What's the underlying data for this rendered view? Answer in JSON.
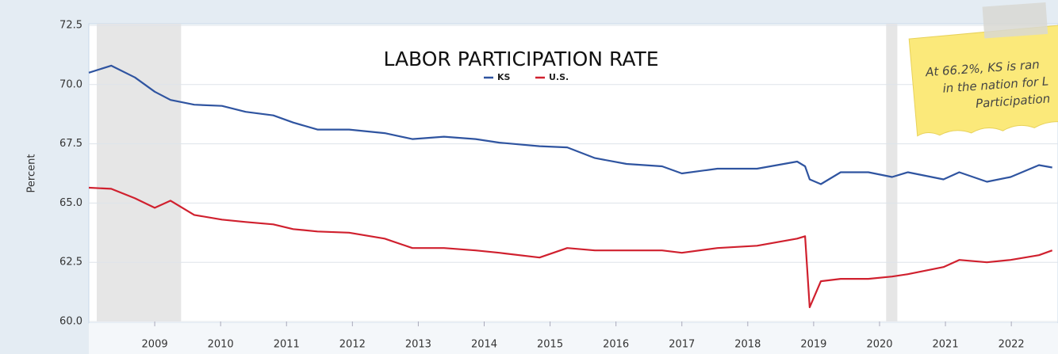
{
  "chart_data": {
    "type": "line",
    "title": "LABOR PARTICIPATION RATE",
    "y_label": "Percent",
    "x": [
      2008.0,
      2008.34,
      2008.7,
      2009.0,
      2009.24,
      2009.6,
      2010.02,
      2010.38,
      2010.8,
      2011.1,
      2011.47,
      2011.95,
      2012.49,
      2012.91,
      2013.39,
      2013.87,
      2014.23,
      2014.84,
      2015.26,
      2015.68,
      2016.16,
      2016.7,
      2017.0,
      2017.54,
      2018.14,
      2018.75,
      2018.87,
      2018.94,
      2019.11,
      2019.41,
      2019.83,
      2020.19,
      2020.43,
      2020.97,
      2021.21,
      2021.63,
      2021.99,
      2022.42,
      2022.62
    ],
    "series": [
      {
        "name": "KS",
        "color": "#2f54a0",
        "values": [
          70.5,
          70.8,
          70.3,
          69.7,
          69.35,
          69.15,
          69.1,
          68.85,
          68.7,
          68.4,
          68.1,
          68.1,
          67.95,
          67.7,
          67.8,
          67.7,
          67.55,
          67.4,
          67.35,
          66.9,
          66.65,
          66.55,
          66.25,
          66.45,
          66.45,
          66.75,
          66.55,
          66.0,
          65.8,
          66.3,
          66.3,
          66.1,
          66.3,
          66.0,
          66.3,
          65.9,
          66.1,
          66.6,
          66.5
        ]
      },
      {
        "name": "U.S.",
        "color": "#d0202e",
        "values": [
          65.65,
          65.6,
          65.2,
          64.8,
          65.1,
          64.5,
          64.3,
          64.2,
          64.1,
          63.9,
          63.8,
          63.75,
          63.5,
          63.1,
          63.1,
          63.0,
          62.9,
          62.7,
          63.1,
          63.0,
          63.0,
          63.0,
          62.9,
          63.1,
          63.2,
          63.5,
          63.6,
          60.6,
          61.7,
          61.8,
          61.8,
          61.9,
          62.0,
          62.3,
          62.6,
          62.5,
          62.6,
          62.8,
          63.0
        ]
      }
    ],
    "recessions": [
      [
        2008.12,
        2009.4
      ],
      [
        2020.1,
        2020.27
      ]
    ],
    "recession_color": "#e6e6e6",
    "xlim": [
      2008.0,
      2022.6
    ],
    "xticks": [
      2009,
      2010,
      2011,
      2012,
      2013,
      2014,
      2015,
      2016,
      2017,
      2018,
      2019,
      2020,
      2021,
      2022
    ],
    "ylim": [
      60,
      72.5
    ],
    "yticks": [
      {
        "value": 60,
        "label": "60.0"
      },
      62.5,
      {
        "value": 65,
        "label": "65.0"
      },
      67.5,
      {
        "value": 70,
        "label": "70.0"
      },
      72.5
    ],
    "grid": true,
    "annotation": [
      "At 66.2%, KS is ran",
      "in the nation for L",
      "Participation"
    ]
  }
}
